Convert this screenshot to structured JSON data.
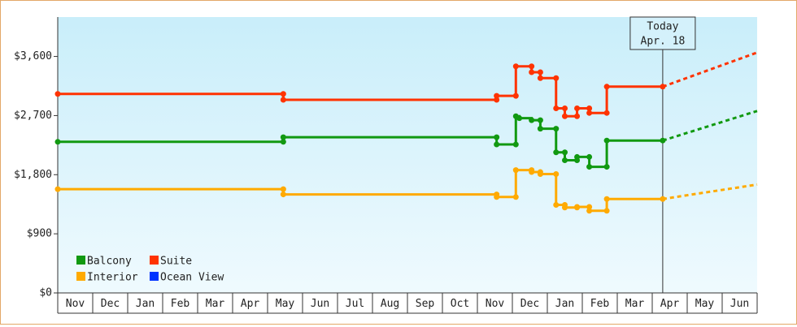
{
  "chart_data": {
    "type": "step",
    "months": [
      "Nov",
      "Dec",
      "Jan",
      "Feb",
      "Mar",
      "Apr",
      "May",
      "Jun",
      "Jul",
      "Aug",
      "Sep",
      "Oct",
      "Nov",
      "Dec",
      "Jan",
      "Feb",
      "Mar",
      "Apr",
      "May",
      "Jun"
    ],
    "xlim": [
      0,
      20
    ],
    "ylim": [
      0,
      4200
    ],
    "yticks": [
      {
        "value": 0,
        "label": "$0"
      },
      {
        "value": 900,
        "label": "$900"
      },
      {
        "value": 1800,
        "label": "$1,800"
      },
      {
        "value": 2700,
        "label": "$2,700"
      },
      {
        "value": 3600,
        "label": "$3,600"
      }
    ],
    "today": {
      "x": 17.3,
      "label": "Today",
      "date": "Apr. 18"
    },
    "series": [
      {
        "name": "Balcony",
        "color": "#119911",
        "x": [
          0,
          6.45,
          6.45,
          12.55,
          12.55,
          13.1,
          13.1,
          13.2,
          13.55,
          13.8,
          13.8,
          14.25,
          14.25,
          14.5,
          14.5,
          14.85,
          14.85,
          15.2,
          15.2,
          15.7,
          15.7,
          17.3
        ],
        "values": [
          2300,
          2300,
          2370,
          2370,
          2260,
          2260,
          2690,
          2660,
          2630,
          2630,
          2500,
          2500,
          2140,
          2140,
          2020,
          2020,
          2070,
          2070,
          1920,
          1920,
          2320,
          2320
        ],
        "forecast_x": [
          17.3,
          20
        ],
        "forecast_values": [
          2320,
          2770
        ]
      },
      {
        "name": "Suite",
        "color": "#ff3300",
        "x": [
          0,
          6.45,
          6.45,
          12.55,
          12.55,
          13.1,
          13.1,
          13.55,
          13.55,
          13.8,
          13.8,
          14.25,
          14.25,
          14.5,
          14.5,
          14.85,
          14.85,
          15.2,
          15.2,
          15.7,
          15.7,
          17.3
        ],
        "values": [
          3030,
          3030,
          2940,
          2940,
          3000,
          3000,
          3450,
          3450,
          3360,
          3360,
          3270,
          3270,
          2810,
          2810,
          2690,
          2690,
          2810,
          2810,
          2740,
          2740,
          3140,
          3140
        ],
        "forecast_x": [
          17.3,
          20
        ],
        "forecast_values": [
          3140,
          3660
        ]
      },
      {
        "name": "Interior",
        "color": "#ffaa00",
        "x": [
          0,
          6.45,
          6.45,
          12.55,
          12.55,
          13.1,
          13.1,
          13.55,
          13.55,
          13.8,
          13.8,
          14.25,
          14.25,
          14.5,
          14.5,
          14.85,
          14.85,
          15.2,
          15.2,
          15.7,
          15.7,
          17.3
        ],
        "values": [
          1580,
          1580,
          1500,
          1500,
          1460,
          1460,
          1870,
          1870,
          1840,
          1840,
          1810,
          1810,
          1340,
          1340,
          1300,
          1300,
          1310,
          1310,
          1250,
          1250,
          1430,
          1430
        ],
        "forecast_x": [
          17.3,
          20
        ],
        "forecast_values": [
          1430,
          1650
        ]
      },
      {
        "name": "Ocean View",
        "color": "#0033ff",
        "x": [],
        "values": [],
        "forecast_x": [],
        "forecast_values": []
      }
    ]
  }
}
